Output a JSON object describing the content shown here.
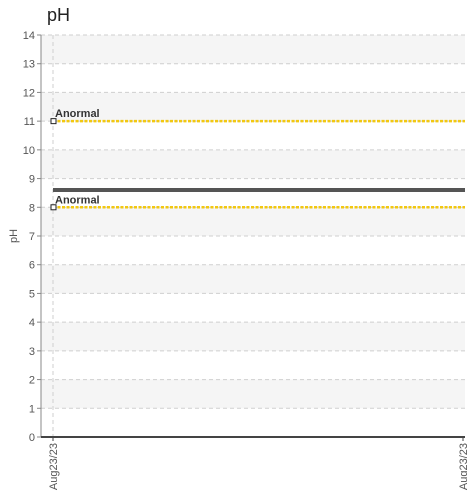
{
  "chart_data": {
    "type": "line",
    "title": "pH",
    "xlabel": "",
    "ylabel": "pH",
    "ylim": [
      0,
      14
    ],
    "yticks": [
      0,
      1,
      2,
      3,
      4,
      5,
      6,
      7,
      8,
      9,
      10,
      11,
      12,
      13,
      14
    ],
    "x_tick_labels": [
      "Aug23/23",
      "Aug23/23"
    ],
    "grid": true,
    "series": [
      {
        "x": [
          "Aug23/23",
          "Aug23/23"
        ],
        "values": [
          8.6,
          8.6
        ],
        "color": "#555555"
      }
    ],
    "reference_lines": [
      {
        "label": "Anormal",
        "value": 11,
        "color": "#f2c811"
      },
      {
        "label": "Anormal",
        "value": 8,
        "color": "#f2c811"
      }
    ]
  }
}
